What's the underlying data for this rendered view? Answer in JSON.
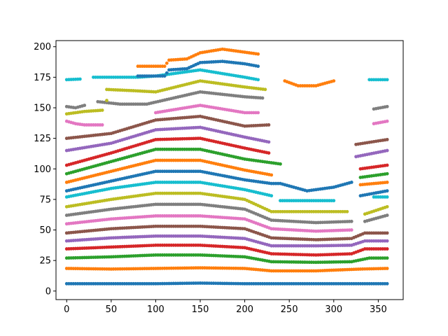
{
  "chart_data": {
    "type": "scatter",
    "title": "",
    "xlabel": "",
    "ylabel": "",
    "xlim": [
      -12,
      378
    ],
    "ylim": [
      -7,
      205
    ],
    "x_ticks": [
      0,
      50,
      100,
      150,
      200,
      250,
      300,
      350
    ],
    "y_ticks": [
      0,
      25,
      50,
      75,
      100,
      125,
      150,
      175,
      200
    ],
    "grid": false,
    "legend": "none",
    "marker": "dot",
    "series": [
      {
        "color": "#1f77b4",
        "segments": [
          [
            [
              0,
              6
            ],
            [
              50,
              6
            ],
            [
              100,
              6
            ],
            [
              150,
              6.5
            ],
            [
              200,
              6
            ],
            [
              250,
              6
            ],
            [
              300,
              6
            ],
            [
              360,
              6
            ]
          ]
        ]
      },
      {
        "color": "#ff7f0e",
        "segments": [
          [
            [
              0,
              18.5
            ],
            [
              50,
              18
            ],
            [
              100,
              18.5
            ],
            [
              150,
              19
            ],
            [
              200,
              18.5
            ],
            [
              230,
              16.5
            ],
            [
              280,
              16.5
            ],
            [
              330,
              18
            ],
            [
              360,
              18.5
            ]
          ]
        ]
      },
      {
        "color": "#2ca02c",
        "segments": [
          [
            [
              0,
              27
            ],
            [
              50,
              28
            ],
            [
              100,
              29.5
            ],
            [
              150,
              29.5
            ],
            [
              200,
              28
            ],
            [
              230,
              24
            ],
            [
              280,
              23.5
            ],
            [
              320,
              24
            ],
            [
              340,
              27
            ],
            [
              360,
              27
            ]
          ]
        ]
      },
      {
        "color": "#d62728",
        "segments": [
          [
            [
              0,
              34.5
            ],
            [
              50,
              36
            ],
            [
              100,
              37.5
            ],
            [
              150,
              37.5
            ],
            [
              200,
              35.5
            ],
            [
              230,
              30.5
            ],
            [
              280,
              29.5
            ],
            [
              320,
              30.5
            ],
            [
              335,
              34.5
            ],
            [
              360,
              34.5
            ]
          ]
        ]
      },
      {
        "color": "#9467bd",
        "segments": [
          [
            [
              0,
              41
            ],
            [
              50,
              43.5
            ],
            [
              100,
              45
            ],
            [
              150,
              45
            ],
            [
              200,
              43
            ],
            [
              230,
              37
            ],
            [
              280,
              37
            ],
            [
              320,
              37.5
            ],
            [
              335,
              41
            ],
            [
              360,
              41
            ]
          ]
        ]
      },
      {
        "color": "#8c564b",
        "segments": [
          [
            [
              0,
              47.5
            ],
            [
              50,
              51
            ],
            [
              100,
              53
            ],
            [
              150,
              53
            ],
            [
              200,
              51
            ],
            [
              230,
              43.5
            ],
            [
              280,
              42
            ],
            [
              320,
              43
            ],
            [
              335,
              47.5
            ],
            [
              360,
              47.5
            ]
          ]
        ]
      },
      {
        "color": "#e377c2",
        "segments": [
          [
            [
              0,
              55
            ],
            [
              50,
              59
            ],
            [
              100,
              61.5
            ],
            [
              150,
              61.5
            ],
            [
              200,
              59
            ],
            [
              230,
              51
            ],
            [
              280,
              49
            ],
            [
              320,
              50
            ]
          ]
        ]
      },
      {
        "color": "#7f7f7f",
        "segments": [
          [
            [
              0,
              62
            ],
            [
              50,
              67
            ],
            [
              100,
              71
            ],
            [
              150,
              71
            ],
            [
              200,
              67
            ],
            [
              230,
              58
            ],
            [
              280,
              56
            ],
            [
              320,
              57
            ]
          ],
          [
            [
              335,
              57
            ],
            [
              360,
              62
            ]
          ]
        ]
      },
      {
        "color": "#bcbd22",
        "segments": [
          [
            [
              0,
              69
            ],
            [
              50,
              75
            ],
            [
              100,
              80
            ],
            [
              150,
              80
            ],
            [
              200,
              75
            ],
            [
              230,
              65
            ],
            [
              280,
              65
            ],
            [
              315,
              65
            ]
          ],
          [
            [
              335,
              63
            ],
            [
              360,
              69
            ]
          ]
        ]
      },
      {
        "color": "#17becf",
        "segments": [
          [
            [
              0,
              77
            ],
            [
              50,
              84
            ],
            [
              100,
              89
            ],
            [
              150,
              89
            ],
            [
              200,
              83
            ],
            [
              230,
              78
            ]
          ],
          [
            [
              240,
              74
            ],
            [
              300,
              74
            ]
          ],
          [
            [
              345,
              77
            ],
            [
              360,
              77
            ]
          ]
        ]
      },
      {
        "color": "#1f77b4",
        "segments": [
          [
            [
              0,
              82
            ],
            [
              50,
              90
            ],
            [
              100,
              98
            ],
            [
              150,
              98
            ],
            [
              200,
              91
            ],
            [
              230,
              88
            ],
            [
              240,
              88
            ],
            [
              270,
              82
            ],
            [
              300,
              85
            ],
            [
              320,
              89
            ]
          ],
          [
            [
              330,
              78
            ],
            [
              360,
              82
            ]
          ]
        ]
      },
      {
        "color": "#ff7f0e",
        "segments": [
          [
            [
              0,
              89
            ],
            [
              50,
              98
            ],
            [
              100,
              107
            ],
            [
              150,
              107
            ],
            [
              200,
              99
            ],
            [
              230,
              95
            ]
          ],
          [
            [
              330,
              87
            ],
            [
              360,
              89
            ]
          ]
        ]
      },
      {
        "color": "#2ca02c",
        "segments": [
          [
            [
              0,
              96
            ],
            [
              50,
              106
            ],
            [
              100,
              116
            ],
            [
              150,
              116
            ],
            [
              200,
              108
            ],
            [
              240,
              104
            ]
          ],
          [
            [
              330,
              93
            ],
            [
              360,
              96
            ]
          ]
        ]
      },
      {
        "color": "#d62728",
        "segments": [
          [
            [
              0,
              103
            ],
            [
              50,
              113
            ],
            [
              100,
              124
            ],
            [
              150,
              125
            ],
            [
              200,
              117
            ],
            [
              227,
              113
            ]
          ],
          [
            [
              330,
              100
            ],
            [
              360,
              103
            ]
          ]
        ]
      },
      {
        "color": "#9467bd",
        "segments": [
          [
            [
              0,
              115
            ],
            [
              50,
              121
            ],
            [
              100,
              132
            ],
            [
              150,
              134
            ],
            [
              200,
              126
            ],
            [
              227,
              122
            ]
          ],
          [
            [
              325,
              110
            ],
            [
              360,
              115
            ]
          ]
        ]
      },
      {
        "color": "#8c564b",
        "segments": [
          [
            [
              0,
              125
            ],
            [
              50,
              129
            ],
            [
              100,
              140
            ],
            [
              150,
              143
            ],
            [
              200,
              135
            ],
            [
              227,
              136
            ]
          ],
          [
            [
              325,
              120
            ],
            [
              360,
              124
            ]
          ]
        ]
      },
      {
        "color": "#e377c2",
        "segments": [
          [
            [
              0,
              139
            ],
            [
              10,
              137
            ],
            [
              20,
              136
            ],
            [
              40,
              136
            ]
          ],
          [
            [
              100,
              146
            ],
            [
              150,
              152
            ],
            [
              200,
              146
            ],
            [
              215,
              146
            ]
          ],
          [
            [
              345,
              137
            ],
            [
              360,
              139
            ]
          ]
        ]
      },
      {
        "color": "#7f7f7f",
        "segments": [
          [
            [
              0,
              151
            ],
            [
              10,
              150
            ],
            [
              20,
              152
            ]
          ],
          [
            [
              35,
              155
            ],
            [
              60,
              153
            ],
            [
              90,
              153
            ],
            [
              150,
              163
            ],
            [
              200,
              159
            ],
            [
              220,
              158
            ]
          ],
          [
            [
              345,
              149
            ],
            [
              360,
              151
            ]
          ]
        ]
      },
      {
        "color": "#bcbd22",
        "segments": [
          [
            [
              0,
              145
            ],
            [
              20,
              147
            ],
            [
              40,
              148
            ]
          ],
          [
            [
              45,
              156
            ]
          ],
          [
            [
              45,
              165
            ],
            [
              75,
              164
            ],
            [
              100,
              163
            ],
            [
              150,
              172
            ],
            [
              200,
              167
            ],
            [
              223,
              165
            ]
          ]
        ]
      },
      {
        "color": "#17becf",
        "segments": [
          [
            [
              0,
              173
            ],
            [
              15,
              173.5
            ]
          ],
          [
            [
              30,
              175
            ],
            [
              80,
              175
            ],
            [
              100,
              176
            ],
            [
              150,
              181
            ],
            [
              200,
              175
            ],
            [
              215,
              173
            ]
          ],
          [
            [
              340,
              173
            ],
            [
              360,
              173
            ]
          ]
        ]
      },
      {
        "color": "#1f77b4",
        "segments": [
          [
            [
              80,
              176
            ],
            [
              110,
              176
            ],
            [
              115,
              181
            ],
            [
              135,
              182
            ],
            [
              150,
              187
            ],
            [
              175,
              188
            ],
            [
              200,
              186
            ],
            [
              215,
              184
            ]
          ]
        ]
      },
      {
        "color": "#ff7f0e",
        "segments": [
          [
            [
              80,
              184
            ],
            [
              110,
              184
            ],
            [
              115,
              189
            ],
            [
              135,
              190
            ],
            [
              150,
              195
            ],
            [
              175,
              198
            ],
            [
              195,
              196
            ],
            [
              215,
              194
            ]
          ],
          [
            [
              245,
              172
            ],
            [
              260,
              168
            ],
            [
              280,
              168
            ],
            [
              300,
              172
            ]
          ]
        ]
      }
    ]
  }
}
